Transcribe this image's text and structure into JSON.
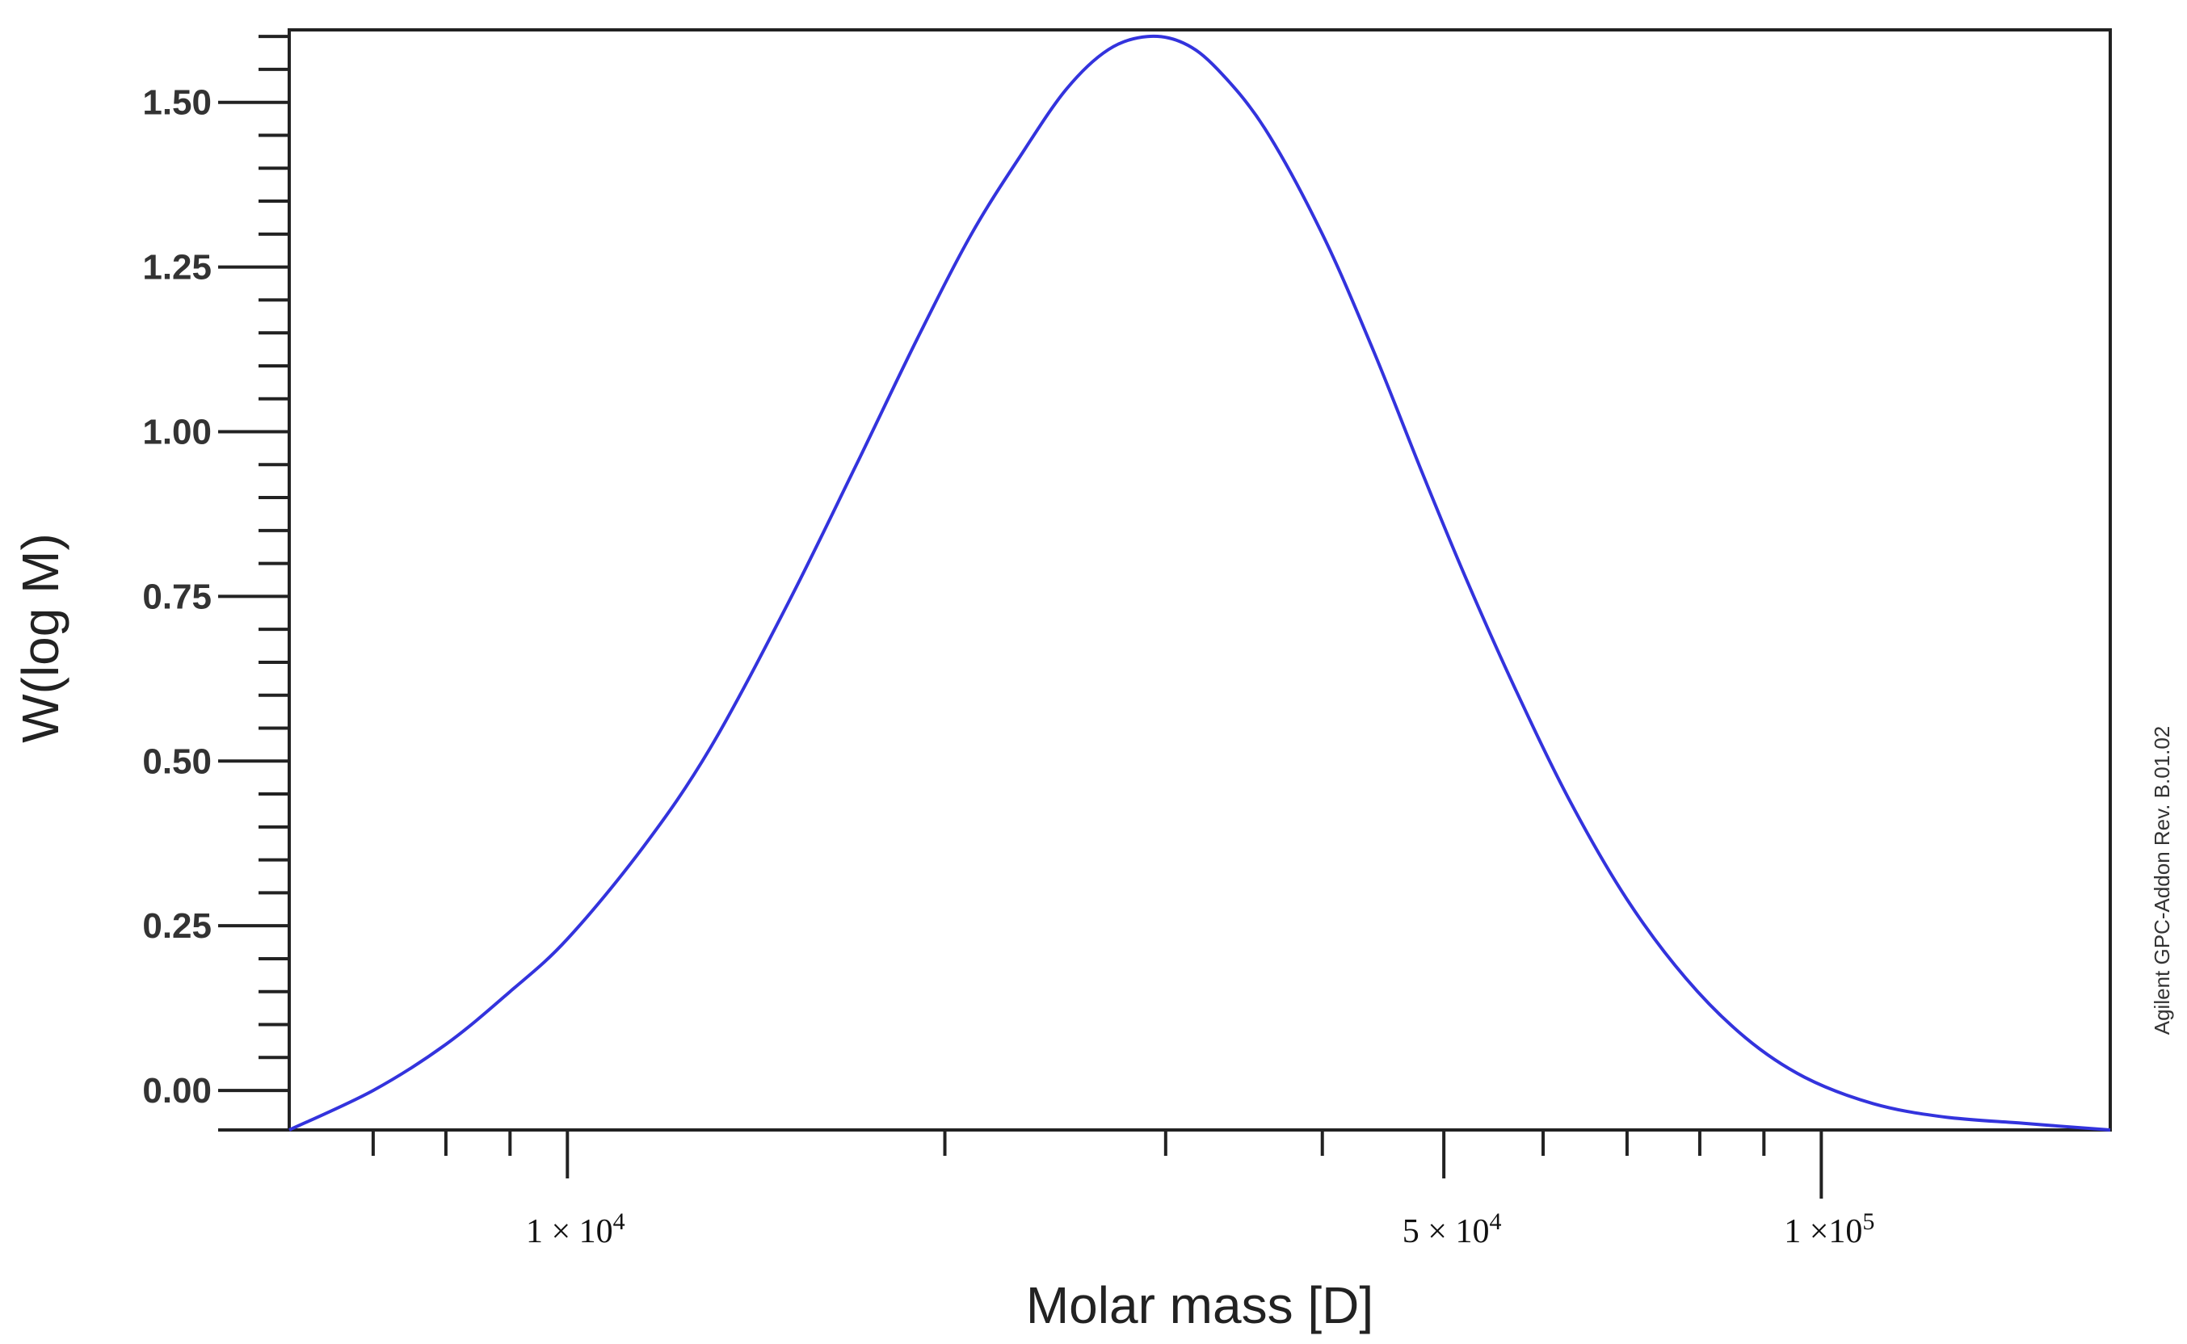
{
  "chart_data": {
    "type": "line",
    "xscale": "log",
    "xlabel": "Molar mass [D]",
    "ylabel": "W(log M)",
    "xlim": [
      6000,
      170000
    ],
    "ylim": [
      -0.06,
      1.61
    ],
    "yticks": [
      0.0,
      0.25,
      0.5,
      0.75,
      1.0,
      1.25,
      1.5
    ],
    "ytick_labels": [
      "0.00",
      "0.25",
      "0.50",
      "0.75",
      "1.00",
      "1.25",
      "1.50"
    ],
    "xtick_labels": [
      {
        "value": 10000,
        "mantissa": "1 × 10",
        "exp": "4"
      },
      {
        "value": 50000,
        "mantissa": "5 × 10",
        "exp": "4"
      },
      {
        "value": 100000,
        "mantissa": "1 ×10",
        "exp": "5"
      }
    ],
    "grid": false,
    "annotation": "Agilent GPC-Addon Rev. B.01.02",
    "series": [
      {
        "color": "#3333dd",
        "x": [
          6000,
          7000,
          8000,
          9000,
          10000,
          11500,
          13000,
          15000,
          17000,
          19000,
          21000,
          23000,
          25000,
          27000,
          29000,
          31000,
          33000,
          36000,
          40000,
          44000,
          48000,
          52000,
          57000,
          63000,
          70000,
          78000,
          87000,
          97000,
          110000,
          125000,
          145000,
          170000
        ],
        "y": [
          -0.06,
          0.0,
          0.07,
          0.15,
          0.23,
          0.37,
          0.52,
          0.74,
          0.95,
          1.14,
          1.3,
          1.42,
          1.52,
          1.58,
          1.6,
          1.59,
          1.55,
          1.46,
          1.3,
          1.12,
          0.94,
          0.78,
          0.61,
          0.44,
          0.29,
          0.17,
          0.08,
          0.02,
          -0.02,
          -0.04,
          -0.05,
          -0.06
        ]
      }
    ]
  }
}
